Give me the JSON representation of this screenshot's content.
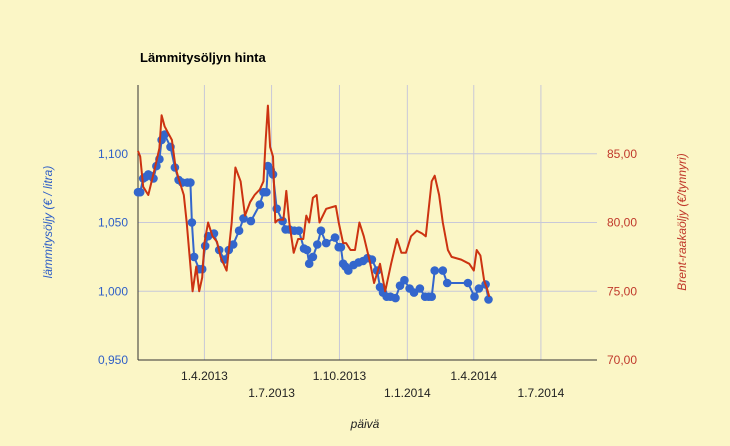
{
  "chart_data": {
    "type": "line",
    "title": "Lämmitysöljyn hinta",
    "xlabel": "päivä",
    "ylabel_left": "lämmitysöljy (€ / litra)",
    "ylabel_right": "Brent-raakaöljy (€/tynnyri)",
    "x_ticks": [
      {
        "date": "2013-04-01",
        "label": "1.4.2013",
        "row": 1
      },
      {
        "date": "2013-07-01",
        "label": "1.7.2013",
        "row": 2
      },
      {
        "date": "2013-10-01",
        "label": "1.10.2013",
        "row": 1
      },
      {
        "date": "2014-01-01",
        "label": "1.1.2014",
        "row": 2
      },
      {
        "date": "2014-04-01",
        "label": "1.4.2014",
        "row": 1
      },
      {
        "date": "2014-07-01",
        "label": "1.7.2014",
        "row": 2
      }
    ],
    "x_range": [
      "2013-01-01",
      "2014-09-15"
    ],
    "y_left": {
      "range": [
        0.95,
        1.15
      ],
      "ticks": [
        "0,950",
        "1,000",
        "1,050",
        "1,100"
      ],
      "tick_values": [
        0.95,
        1.0,
        1.05,
        1.1
      ]
    },
    "y_right": {
      "range": [
        70,
        90
      ],
      "ticks": [
        "70,00",
        "75,00",
        "80,00",
        "85,00"
      ],
      "tick_values": [
        70,
        75,
        80,
        85
      ]
    },
    "grid": true,
    "colors": {
      "heating_oil": "#3366cc",
      "brent": "#cc3311",
      "background": "#fbf6c6",
      "grid": "#c8c8d8"
    },
    "series": [
      {
        "axis": "left",
        "style": "line-markers",
        "points": [
          [
            "2013-01-01",
            1.072
          ],
          [
            "2013-01-04",
            1.072
          ],
          [
            "2013-01-08",
            1.082
          ],
          [
            "2013-01-11",
            1.083
          ],
          [
            "2013-01-15",
            1.085
          ],
          [
            "2013-01-18",
            1.084
          ],
          [
            "2013-01-22",
            1.082
          ],
          [
            "2013-01-26",
            1.091
          ],
          [
            "2013-01-30",
            1.096
          ],
          [
            "2013-02-02",
            1.11
          ],
          [
            "2013-02-06",
            1.114
          ],
          [
            "2013-02-14",
            1.105
          ],
          [
            "2013-02-20",
            1.09
          ],
          [
            "2013-02-25",
            1.081
          ],
          [
            "2013-03-02",
            1.079
          ],
          [
            "2013-03-09",
            1.079
          ],
          [
            "2013-03-13",
            1.079
          ],
          [
            "2013-03-15",
            1.05
          ],
          [
            "2013-03-18",
            1.025
          ],
          [
            "2013-03-25",
            1.016
          ],
          [
            "2013-03-29",
            1.016
          ],
          [
            "2013-04-02",
            1.033
          ],
          [
            "2013-04-06",
            1.04
          ],
          [
            "2013-04-14",
            1.042
          ],
          [
            "2013-04-21",
            1.03
          ],
          [
            "2013-04-28",
            1.023
          ],
          [
            "2013-05-04",
            1.03
          ],
          [
            "2013-05-10",
            1.034
          ],
          [
            "2013-05-18",
            1.044
          ],
          [
            "2013-05-24",
            1.053
          ],
          [
            "2013-06-03",
            1.051
          ],
          [
            "2013-06-15",
            1.063
          ],
          [
            "2013-06-20",
            1.072
          ],
          [
            "2013-06-24",
            1.072
          ],
          [
            "2013-06-26",
            1.091
          ],
          [
            "2013-06-30",
            1.088
          ],
          [
            "2013-07-03",
            1.085
          ],
          [
            "2013-07-08",
            1.06
          ],
          [
            "2013-07-16",
            1.051
          ],
          [
            "2013-07-20",
            1.045
          ],
          [
            "2013-07-25",
            1.045
          ],
          [
            "2013-08-01",
            1.044
          ],
          [
            "2013-08-07",
            1.044
          ],
          [
            "2013-08-14",
            1.031
          ],
          [
            "2013-08-18",
            1.03
          ],
          [
            "2013-08-21",
            1.02
          ],
          [
            "2013-08-26",
            1.025
          ],
          [
            "2013-09-01",
            1.034
          ],
          [
            "2013-09-06",
            1.044
          ],
          [
            "2013-09-13",
            1.035
          ],
          [
            "2013-09-25",
            1.039
          ],
          [
            "2013-09-30",
            1.032
          ],
          [
            "2013-10-03",
            1.032
          ],
          [
            "2013-10-06",
            1.02
          ],
          [
            "2013-10-09",
            1.018
          ],
          [
            "2013-10-13",
            1.015
          ],
          [
            "2013-10-20",
            1.019
          ],
          [
            "2013-10-27",
            1.021
          ],
          [
            "2013-11-02",
            1.022
          ],
          [
            "2013-11-08",
            1.024
          ],
          [
            "2013-11-14",
            1.023
          ],
          [
            "2013-11-21",
            1.015
          ],
          [
            "2013-11-25",
            1.003
          ],
          [
            "2013-11-29",
            0.999
          ],
          [
            "2013-12-04",
            0.996
          ],
          [
            "2013-12-09",
            0.996
          ],
          [
            "2013-12-16",
            0.995
          ],
          [
            "2013-12-22",
            1.004
          ],
          [
            "2013-12-28",
            1.008
          ],
          [
            "2014-01-04",
            1.002
          ],
          [
            "2014-01-10",
            0.999
          ],
          [
            "2014-01-18",
            1.002
          ],
          [
            "2014-01-25",
            0.996
          ],
          [
            "2014-01-30",
            0.996
          ],
          [
            "2014-02-03",
            0.996
          ],
          [
            "2014-02-07",
            1.015
          ],
          [
            "2014-02-18",
            1.015
          ],
          [
            "2014-02-24",
            1.006
          ],
          [
            "2014-03-24",
            1.006
          ],
          [
            "2014-04-02",
            0.996
          ],
          [
            "2014-04-08",
            1.002
          ],
          [
            "2014-04-17",
            1.005
          ],
          [
            "2014-04-21",
            0.994
          ]
        ]
      },
      {
        "axis": "right",
        "style": "line",
        "points": [
          [
            "2013-01-01",
            85.2
          ],
          [
            "2013-01-04",
            84.8
          ],
          [
            "2013-01-08",
            82.6
          ],
          [
            "2013-01-15",
            82.0
          ],
          [
            "2013-01-24",
            84.0
          ],
          [
            "2013-01-30",
            85.4
          ],
          [
            "2013-02-02",
            87.8
          ],
          [
            "2013-02-06",
            87.0
          ],
          [
            "2013-02-10",
            86.6
          ],
          [
            "2013-02-16",
            86.0
          ],
          [
            "2013-02-21",
            84.0
          ],
          [
            "2013-02-25",
            83.2
          ],
          [
            "2013-03-04",
            82.0
          ],
          [
            "2013-03-08",
            80.0
          ],
          [
            "2013-03-16",
            75.0
          ],
          [
            "2013-03-21",
            76.8
          ],
          [
            "2013-03-25",
            75.0
          ],
          [
            "2013-03-29",
            76.0
          ],
          [
            "2013-04-01",
            78.5
          ],
          [
            "2013-04-06",
            80.0
          ],
          [
            "2013-04-12",
            79.0
          ],
          [
            "2013-04-18",
            78.6
          ],
          [
            "2013-04-23",
            77.5
          ],
          [
            "2013-05-01",
            76.5
          ],
          [
            "2013-05-08",
            80.0
          ],
          [
            "2013-05-13",
            84.0
          ],
          [
            "2013-05-20",
            83.0
          ],
          [
            "2013-05-26",
            80.5
          ],
          [
            "2013-06-02",
            81.5
          ],
          [
            "2013-06-08",
            82.0
          ],
          [
            "2013-06-15",
            82.4
          ],
          [
            "2013-06-20",
            83.0
          ],
          [
            "2013-06-23",
            86.0
          ],
          [
            "2013-06-26",
            88.5
          ],
          [
            "2013-06-29",
            85.5
          ],
          [
            "2013-07-03",
            84.8
          ],
          [
            "2013-07-06",
            80.0
          ],
          [
            "2013-07-10",
            80.2
          ],
          [
            "2013-07-17",
            80.2
          ],
          [
            "2013-07-21",
            82.3
          ],
          [
            "2013-07-25",
            80.0
          ],
          [
            "2013-07-31",
            77.8
          ],
          [
            "2013-08-06",
            78.8
          ],
          [
            "2013-08-13",
            78.8
          ],
          [
            "2013-08-17",
            80.5
          ],
          [
            "2013-08-21",
            80.0
          ],
          [
            "2013-08-26",
            81.8
          ],
          [
            "2013-08-31",
            82.0
          ],
          [
            "2013-09-04",
            80.0
          ],
          [
            "2013-09-13",
            81.0
          ],
          [
            "2013-09-26",
            81.2
          ],
          [
            "2013-09-30",
            80.0
          ],
          [
            "2013-10-06",
            78.5
          ],
          [
            "2013-10-10",
            78.5
          ],
          [
            "2013-10-16",
            78.0
          ],
          [
            "2013-10-22",
            78.0
          ],
          [
            "2013-10-28",
            80.0
          ],
          [
            "2013-11-03",
            79.0
          ],
          [
            "2013-11-11",
            77.2
          ],
          [
            "2013-11-17",
            75.6
          ],
          [
            "2013-11-25",
            77.0
          ],
          [
            "2013-12-02",
            75.0
          ],
          [
            "2013-12-10",
            77.0
          ],
          [
            "2013-12-18",
            78.8
          ],
          [
            "2013-12-24",
            77.8
          ],
          [
            "2013-12-30",
            77.8
          ],
          [
            "2014-01-06",
            79.0
          ],
          [
            "2014-01-14",
            79.4
          ],
          [
            "2014-01-21",
            79.2
          ],
          [
            "2014-01-26",
            79.0
          ],
          [
            "2014-01-30",
            81.0
          ],
          [
            "2014-02-03",
            83.0
          ],
          [
            "2014-02-07",
            83.4
          ],
          [
            "2014-02-13",
            82.0
          ],
          [
            "2014-02-18",
            80.0
          ],
          [
            "2014-02-25",
            78.0
          ],
          [
            "2014-03-02",
            77.5
          ],
          [
            "2014-03-15",
            77.3
          ],
          [
            "2014-03-26",
            77.0
          ],
          [
            "2014-04-01",
            76.5
          ],
          [
            "2014-04-05",
            78.0
          ],
          [
            "2014-04-10",
            77.6
          ],
          [
            "2014-04-15",
            75.8
          ],
          [
            "2014-04-19",
            75.2
          ],
          [
            "2014-04-22",
            74.6
          ]
        ]
      }
    ]
  }
}
